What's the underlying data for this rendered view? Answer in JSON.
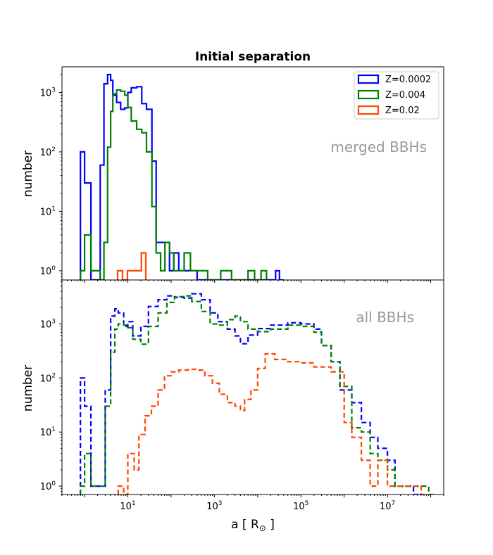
{
  "chart_data": {
    "type": "histogram",
    "title": "Initial separation",
    "xlabel": "a [ R⊙ ]",
    "x_scale": "log",
    "x_range": [
      0.3,
      200000000
    ],
    "x_ticks": [
      10,
      1000,
      100000,
      10000000
    ],
    "x_tick_labels": [
      {
        "base": "10",
        "exp": "1"
      },
      {
        "base": "10",
        "exp": "3"
      },
      {
        "base": "10",
        "exp": "5"
      },
      {
        "base": "10",
        "exp": "7"
      }
    ],
    "colors": {
      "Z=0.0002": "#0000ff",
      "Z=0.004": "#008000",
      "Z=0.02": "#ff4500"
    },
    "legend": {
      "placement": "top-right",
      "entries": [
        "Z=0.0002",
        "Z=0.004",
        "Z=0.02"
      ]
    },
    "panels": [
      {
        "annotation": "merged BBHs",
        "ylabel": "number",
        "y_scale": "log",
        "y_range": [
          0.7,
          2700
        ],
        "y_ticks": [
          1,
          10,
          100,
          1000
        ],
        "y_tick_labels": [
          {
            "base": "10",
            "exp": "0"
          },
          {
            "base": "10",
            "exp": "1"
          },
          {
            "base": "10",
            "exp": "2"
          },
          {
            "base": "10",
            "exp": "3"
          }
        ],
        "linestyle": "solid",
        "series": [
          {
            "name": "Z=0.0002",
            "steps": [
              [
                0.8,
                1.0
              ],
              [
                1.0,
                1.4
              ],
              [
                1.4,
                2.3
              ],
              [
                2.3,
                2.8
              ],
              [
                2.8,
                3.4
              ],
              [
                3.4,
                4.0
              ],
              [
                4.0,
                4.5
              ],
              [
                4.5,
                5.5
              ],
              [
                5.5,
                6.8
              ],
              [
                6.8,
                8.5
              ],
              [
                8.5,
                10.0
              ],
              [
                10.0,
                12.0
              ],
              [
                12.0,
                16.0
              ],
              [
                16.0,
                21.0
              ],
              [
                21.0,
                27.0
              ],
              [
                27.0,
                36.0
              ],
              [
                36.0,
                45.0
              ],
              [
                45.0,
                57.0
              ],
              [
                57.0,
                72.0
              ],
              [
                72.0,
                92.0
              ],
              [
                92.0,
                115.0
              ],
              [
                115.0,
                150.0
              ],
              [
                150.0,
                200.0
              ],
              [
                200.0,
                280.0
              ],
              [
                280.0,
                400.0
              ],
              [
                400.0,
                700.0
              ],
              [
                700.0,
                1000.0
              ],
              [
                1000.0,
                20000.0
              ],
              [
                20000.0,
                26000.0
              ],
              [
                26000.0,
                32000.0
              ],
              [
                32000.0,
                40000.0
              ]
            ],
            "values": [
              100,
              30,
              0,
              60,
              1400,
              2000,
              1600,
              900,
              680,
              520,
              550,
              1000,
              1200,
              1250,
              650,
              520,
              70,
              3,
              3,
              3,
              1,
              2,
              1,
              1,
              1,
              0,
              0,
              0,
              0,
              1,
              0
            ]
          },
          {
            "name": "Z=0.004",
            "steps": [
              [
                0.8,
                1.0
              ],
              [
                1.0,
                1.4
              ],
              [
                1.4,
                2.3
              ],
              [
                2.3,
                2.8
              ],
              [
                2.8,
                3.4
              ],
              [
                3.4,
                4.0
              ],
              [
                4.0,
                4.5
              ],
              [
                4.5,
                5.5
              ],
              [
                5.5,
                6.8
              ],
              [
                6.8,
                8.5
              ],
              [
                8.5,
                10.0
              ],
              [
                10.0,
                12.0
              ],
              [
                12.0,
                16.0
              ],
              [
                16.0,
                21.0
              ],
              [
                21.0,
                27.0
              ],
              [
                27.0,
                36.0
              ],
              [
                36.0,
                45.0
              ],
              [
                45.0,
                57.0
              ],
              [
                57.0,
                72.0
              ],
              [
                72.0,
                92.0
              ],
              [
                92.0,
                115.0
              ],
              [
                115.0,
                150.0
              ],
              [
                150.0,
                200.0
              ],
              [
                200.0,
                280.0
              ],
              [
                280.0,
                400.0
              ],
              [
                400.0,
                700.0
              ],
              [
                700.0,
                1400.0
              ],
              [
                1400.0,
                2500.0
              ],
              [
                2500.0,
                6000.0
              ],
              [
                6000.0,
                8500.0
              ],
              [
                8500.0,
                12000.0
              ],
              [
                12000.0,
                16000.0
              ]
            ],
            "values": [
              1,
              4,
              1,
              0,
              3,
              120,
              480,
              950,
              1100,
              1050,
              900,
              560,
              330,
              240,
              210,
              100,
              12,
              2,
              1,
              3,
              2,
              1,
              1,
              2,
              1,
              1,
              0,
              1,
              0,
              1,
              0,
              1
            ]
          },
          {
            "name": "Z=0.02",
            "steps": [
              [
                5.8,
                7.5
              ],
              [
                7.5,
                9.8
              ],
              [
                9.8,
                12.5
              ],
              [
                12.5,
                16.0
              ],
              [
                16.0,
                20.5
              ],
              [
                20.5,
                26.0
              ]
            ],
            "values": [
              1,
              0,
              1,
              1,
              1,
              2
            ]
          }
        ]
      },
      {
        "annotation": "all BBHs",
        "ylabel": "number",
        "y_scale": "log",
        "y_range": [
          0.7,
          6500
        ],
        "y_ticks": [
          1,
          10,
          100,
          1000
        ],
        "y_tick_labels": [
          {
            "base": "10",
            "exp": "0"
          },
          {
            "base": "10",
            "exp": "1"
          },
          {
            "base": "10",
            "exp": "2"
          },
          {
            "base": "10",
            "exp": "3"
          }
        ],
        "linestyle": "dashed",
        "series": [
          {
            "name": "Z=0.0002",
            "profile": [
              [
                0.8,
                100
              ],
              [
                1.0,
                30
              ],
              [
                1.4,
                1
              ],
              [
                3.0,
                60
              ],
              [
                4.0,
                1400
              ],
              [
                5.0,
                1900
              ],
              [
                6.0,
                1600
              ],
              [
                8.0,
                900
              ],
              [
                10.0,
                1100
              ],
              [
                13.0,
                600
              ],
              [
                20.0,
                900
              ],
              [
                30.0,
                2100
              ],
              [
                50.0,
                2800
              ],
              [
                80.0,
                3300
              ],
              [
                120.0,
                3100
              ],
              [
                200.0,
                3000
              ],
              [
                300.0,
                3600
              ],
              [
                500.0,
                2800
              ],
              [
                800.0,
                1600
              ],
              [
                1200.0,
                1100
              ],
              [
                2000.0,
                800
              ],
              [
                3000.0,
                600
              ],
              [
                4000.0,
                430
              ],
              [
                6000.0,
                620
              ],
              [
                10000.0,
                820
              ],
              [
                20000.0,
                950
              ],
              [
                50000.0,
                1050
              ],
              [
                100000.0,
                1000
              ],
              [
                200000.0,
                800
              ],
              [
                300000.0,
                400
              ],
              [
                500000.0,
                200
              ],
              [
                800000.0,
                60
              ],
              [
                1500000.0,
                35
              ],
              [
                2500000.0,
                15
              ],
              [
                4000000.0,
                8
              ],
              [
                6000000.0,
                5
              ],
              [
                10000000.0,
                3
              ],
              [
                15000000.0,
                1
              ],
              [
                30000000.0,
                1
              ],
              [
                40000000.0,
                0.7
              ]
            ]
          },
          {
            "name": "Z=0.004",
            "profile": [
              [
                0.8,
                1
              ],
              [
                1.0,
                4
              ],
              [
                1.4,
                1
              ],
              [
                3.0,
                30
              ],
              [
                4.0,
                300
              ],
              [
                5.0,
                800
              ],
              [
                6.0,
                1000
              ],
              [
                8.0,
                950
              ],
              [
                10.0,
                850
              ],
              [
                13.0,
                520
              ],
              [
                20.0,
                420
              ],
              [
                30.0,
                900
              ],
              [
                50.0,
                1600
              ],
              [
                80.0,
                2500
              ],
              [
                120.0,
                3200
              ],
              [
                200.0,
                3300
              ],
              [
                300.0,
                2600
              ],
              [
                500.0,
                1700
              ],
              [
                800.0,
                1000
              ],
              [
                1200.0,
                950
              ],
              [
                2000.0,
                1200
              ],
              [
                3000.0,
                1400
              ],
              [
                4000.0,
                1100
              ],
              [
                6000.0,
                800
              ],
              [
                10000.0,
                720
              ],
              [
                20000.0,
                800
              ],
              [
                50000.0,
                950
              ],
              [
                100000.0,
                900
              ],
              [
                200000.0,
                700
              ],
              [
                300000.0,
                400
              ],
              [
                500000.0,
                200
              ],
              [
                800000.0,
                70
              ],
              [
                1500000.0,
                12
              ],
              [
                2500000.0,
                10
              ],
              [
                4000000.0,
                4
              ],
              [
                6000000.0,
                3
              ],
              [
                10000000.0,
                2
              ],
              [
                15000000.0,
                1
              ],
              [
                30000000.0,
                1
              ],
              [
                60000000.0,
                1
              ],
              [
                90000000.0,
                0.7
              ]
            ]
          },
          {
            "name": "Z=0.02",
            "profile": [
              [
                6.0,
                1
              ],
              [
                8.0,
                0.7
              ],
              [
                10.0,
                4
              ],
              [
                14.0,
                2
              ],
              [
                18.0,
                9
              ],
              [
                25.0,
                20
              ],
              [
                35.0,
                30
              ],
              [
                50.0,
                60
              ],
              [
                70.0,
                110
              ],
              [
                100.0,
                130
              ],
              [
                150.0,
                140
              ],
              [
                250.0,
                145
              ],
              [
                400.0,
                140
              ],
              [
                600.0,
                110
              ],
              [
                900.0,
                80
              ],
              [
                1300.0,
                50
              ],
              [
                2000.0,
                35
              ],
              [
                3000.0,
                30
              ],
              [
                4000.0,
                25
              ],
              [
                5000.0,
                40
              ],
              [
                7000.0,
                60
              ],
              [
                10000.0,
                150
              ],
              [
                15000.0,
                280
              ],
              [
                25000.0,
                220
              ],
              [
                50000.0,
                200
              ],
              [
                100000.0,
                190
              ],
              [
                200000.0,
                160
              ],
              [
                300000.0,
                160
              ],
              [
                500000.0,
                130
              ],
              [
                1000000.0,
                15
              ],
              [
                1500000.0,
                8
              ],
              [
                2500000.0,
                3
              ],
              [
                4000000.0,
                1
              ],
              [
                6000000.0,
                3
              ],
              [
                10000000.0,
                1
              ],
              [
                15000000.0,
                1
              ],
              [
                30000000.0,
                1
              ],
              [
                60000000.0,
                0.7
              ]
            ]
          }
        ]
      }
    ]
  }
}
